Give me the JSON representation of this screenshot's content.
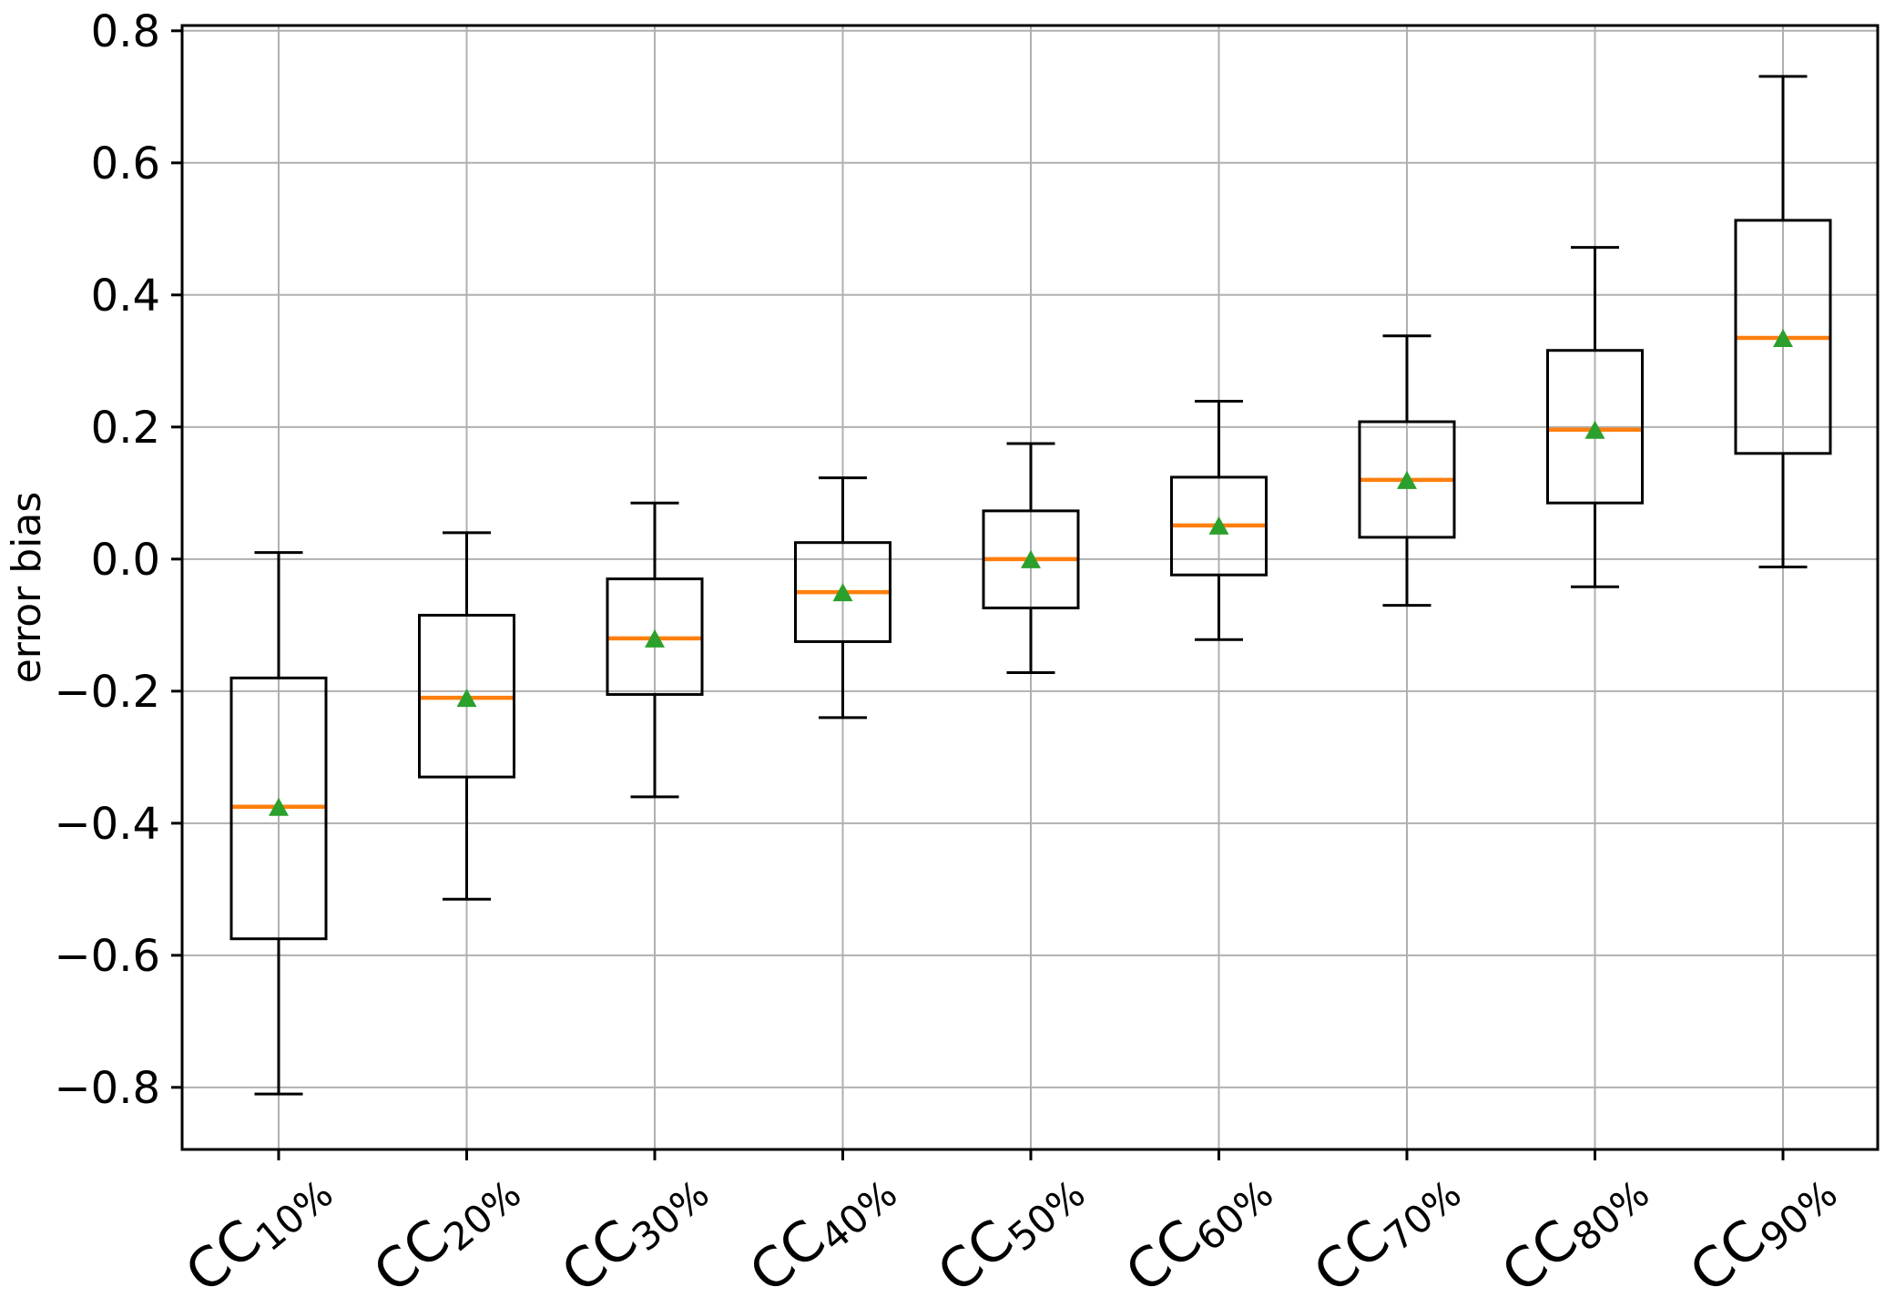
{
  "chart_data": {
    "type": "box",
    "title": "",
    "xlabel": "",
    "ylabel": "error bias",
    "grid": true,
    "legend_position": "none",
    "ylim": [
      -0.894,
      0.808
    ],
    "yticks": [
      {
        "value": 0.8,
        "label": "0.8"
      },
      {
        "value": 0.6,
        "label": "0.6"
      },
      {
        "value": 0.4,
        "label": "0.4"
      },
      {
        "value": 0.2,
        "label": "0.2"
      },
      {
        "value": 0.0,
        "label": "0.0"
      },
      {
        "value": -0.2,
        "label": "−0.2"
      },
      {
        "value": -0.4,
        "label": "−0.4"
      },
      {
        "value": -0.6,
        "label": "−0.6"
      },
      {
        "value": -0.8,
        "label": "−0.8"
      }
    ],
    "categories": [
      {
        "base": "CC",
        "sub": "10%"
      },
      {
        "base": "CC",
        "sub": "20%"
      },
      {
        "base": "CC",
        "sub": "30%"
      },
      {
        "base": "CC",
        "sub": "40%"
      },
      {
        "base": "CC",
        "sub": "50%"
      },
      {
        "base": "CC",
        "sub": "60%"
      },
      {
        "base": "CC",
        "sub": "70%"
      },
      {
        "base": "CC",
        "sub": "80%"
      },
      {
        "base": "CC",
        "sub": "90%"
      }
    ],
    "series": [
      {
        "label": "CC10%",
        "whislo": -0.81,
        "q1": -0.575,
        "med": -0.375,
        "q3": -0.18,
        "whishi": 0.01,
        "mean": -0.375,
        "fliers": []
      },
      {
        "label": "CC20%",
        "whislo": -0.515,
        "q1": -0.33,
        "med": -0.21,
        "q3": -0.085,
        "whishi": 0.04,
        "mean": -0.21,
        "fliers": []
      },
      {
        "label": "CC30%",
        "whislo": -0.36,
        "q1": -0.205,
        "med": -0.12,
        "q3": -0.03,
        "whishi": 0.085,
        "mean": -0.12,
        "fliers": []
      },
      {
        "label": "CC40%",
        "whislo": -0.24,
        "q1": -0.125,
        "med": -0.05,
        "q3": 0.025,
        "whishi": 0.123,
        "mean": -0.05,
        "fliers": []
      },
      {
        "label": "CC50%",
        "whislo": -0.172,
        "q1": -0.074,
        "med": 0.0,
        "q3": 0.073,
        "whishi": 0.175,
        "mean": 0.0,
        "fliers": []
      },
      {
        "label": "CC60%",
        "whislo": -0.122,
        "q1": -0.024,
        "med": 0.051,
        "q3": 0.124,
        "whishi": 0.239,
        "mean": 0.051,
        "fliers": []
      },
      {
        "label": "CC70%",
        "whislo": -0.07,
        "q1": 0.033,
        "med": 0.12,
        "q3": 0.208,
        "whishi": 0.338,
        "mean": 0.12,
        "fliers": []
      },
      {
        "label": "CC80%",
        "whislo": -0.042,
        "q1": 0.085,
        "med": 0.196,
        "q3": 0.316,
        "whishi": 0.472,
        "mean": 0.196,
        "fliers": []
      },
      {
        "label": "CC90%",
        "whislo": -0.012,
        "q1": 0.16,
        "med": 0.335,
        "q3": 0.513,
        "whishi": 0.731,
        "mean": 0.335,
        "fliers": []
      }
    ],
    "colors": {
      "median": "#ff7f0e",
      "mean": "#2ca02c",
      "box": "#000000",
      "whisker": "#000000",
      "cap": "#000000",
      "grid": "#b0b0b0",
      "spine": "#000000",
      "text": "#000000",
      "background": "#ffffff"
    }
  }
}
